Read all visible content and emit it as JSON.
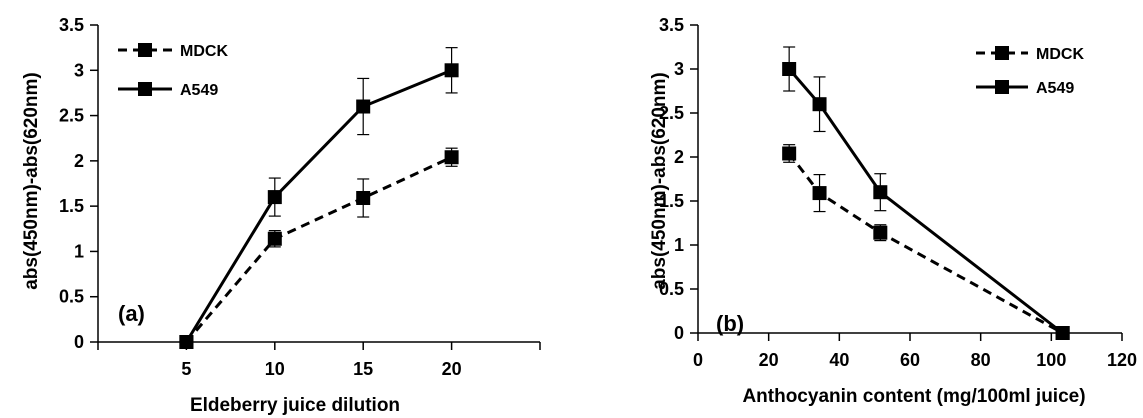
{
  "chart_data": [
    {
      "type": "line",
      "panel_label": "(a)",
      "xlabel": "Eldeberry juice dilution",
      "ylabel": "abs(450nm)-abs(620nm)",
      "xlim": [
        0,
        25
      ],
      "ylim": [
        0,
        3.5
      ],
      "xticks": [
        5,
        10,
        15,
        20
      ],
      "yticks": [
        "0",
        "0.5",
        "1",
        "1.5",
        "2",
        "2.5",
        "3",
        "3.5"
      ],
      "legend_position": "top-left",
      "series": [
        {
          "name": "MDCK",
          "style": "dashed",
          "x": [
            5,
            10,
            15,
            20
          ],
          "y": [
            0,
            1.14,
            1.59,
            2.04
          ],
          "err": [
            0.01,
            0.09,
            0.21,
            0.1
          ]
        },
        {
          "name": "A549",
          "style": "solid",
          "x": [
            5,
            10,
            15,
            20
          ],
          "y": [
            0,
            1.6,
            2.6,
            3.0
          ],
          "err": [
            0.01,
            0.21,
            0.31,
            0.25
          ]
        }
      ]
    },
    {
      "type": "line",
      "panel_label": "(b)",
      "xlabel": "Anthocyanin content (mg/100ml juice)",
      "ylabel": "abs(450nm)-abs(620nm)",
      "xlim": [
        0,
        120
      ],
      "ylim": [
        0,
        3.5
      ],
      "xticks": [
        "0",
        "20",
        "40",
        "60",
        "80",
        "100",
        "120"
      ],
      "yticks": [
        "0",
        "0.5",
        "1",
        "1.5",
        "2",
        "2.5",
        "3",
        "3.5"
      ],
      "legend_position": "top-right",
      "series": [
        {
          "name": "MDCK",
          "style": "dashed",
          "x": [
            25.8,
            34.4,
            51.6,
            103.2
          ],
          "y": [
            2.04,
            1.59,
            1.14,
            0
          ],
          "err": [
            0.1,
            0.21,
            0.09,
            0.01
          ]
        },
        {
          "name": "A549",
          "style": "solid",
          "x": [
            25.8,
            34.4,
            51.6,
            103.2
          ],
          "y": [
            3.0,
            2.6,
            1.6,
            0
          ],
          "err": [
            0.25,
            0.31,
            0.21,
            0.01
          ]
        }
      ]
    }
  ]
}
